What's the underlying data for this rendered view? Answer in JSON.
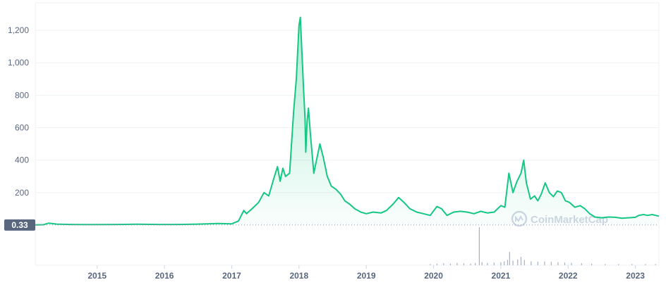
{
  "colors": {
    "line": "#16c784",
    "grid": "#eff2f5",
    "axis_text": "#58667e",
    "badge_bg": "#58667e",
    "badge_text": "#ffffff",
    "volume": "#a6b0c3",
    "watermark": "#cfd6e4"
  },
  "watermark": {
    "text": "CoinMarketCap",
    "icon": "coinmarketcap-logo-icon"
  },
  "current_price_badge": "0.33",
  "chart_data": {
    "type": "area",
    "title": "",
    "xlabel": "",
    "ylabel": "",
    "ylim": [
      0,
      1300
    ],
    "xlim": [
      2014.08,
      2023.35
    ],
    "grid": true,
    "y_ticks": [
      {
        "value": 200,
        "label": "200"
      },
      {
        "value": 400,
        "label": "400"
      },
      {
        "value": 600,
        "label": "600"
      },
      {
        "value": 800,
        "label": "800"
      },
      {
        "value": 1000,
        "label": "1,000"
      },
      {
        "value": 1200,
        "label": "1,200"
      }
    ],
    "x_ticks": [
      {
        "value": 2015,
        "label": "2015"
      },
      {
        "value": 2016,
        "label": "2016"
      },
      {
        "value": 2017,
        "label": "2017"
      },
      {
        "value": 2018,
        "label": "2018"
      },
      {
        "value": 2019,
        "label": "2019"
      },
      {
        "value": 2020,
        "label": "2020"
      },
      {
        "value": 2021,
        "label": "2021"
      },
      {
        "value": 2022,
        "label": "2022"
      },
      {
        "value": 2023,
        "label": "2023"
      }
    ],
    "series": [
      {
        "values": [
          [
            2014.08,
            1
          ],
          [
            2014.2,
            2
          ],
          [
            2014.28,
            12
          ],
          [
            2014.4,
            6
          ],
          [
            2014.6,
            4
          ],
          [
            2014.8,
            3
          ],
          [
            2015.0,
            3
          ],
          [
            2015.3,
            4
          ],
          [
            2015.6,
            5
          ],
          [
            2015.9,
            4
          ],
          [
            2016.2,
            4
          ],
          [
            2016.5,
            6
          ],
          [
            2016.8,
            10
          ],
          [
            2017.0,
            8
          ],
          [
            2017.1,
            25
          ],
          [
            2017.18,
            90
          ],
          [
            2017.22,
            70
          ],
          [
            2017.3,
            100
          ],
          [
            2017.4,
            140
          ],
          [
            2017.48,
            200
          ],
          [
            2017.55,
            180
          ],
          [
            2017.62,
            280
          ],
          [
            2017.68,
            360
          ],
          [
            2017.72,
            270
          ],
          [
            2017.76,
            350
          ],
          [
            2017.8,
            300
          ],
          [
            2017.86,
            320
          ],
          [
            2017.92,
            700
          ],
          [
            2017.96,
            900
          ],
          [
            2018.0,
            1230
          ],
          [
            2018.02,
            1280
          ],
          [
            2018.05,
            1000
          ],
          [
            2018.07,
            820
          ],
          [
            2018.09,
            650
          ],
          [
            2018.1,
            450
          ],
          [
            2018.12,
            640
          ],
          [
            2018.14,
            720
          ],
          [
            2018.17,
            560
          ],
          [
            2018.22,
            320
          ],
          [
            2018.27,
            420
          ],
          [
            2018.31,
            500
          ],
          [
            2018.36,
            420
          ],
          [
            2018.42,
            300
          ],
          [
            2018.48,
            240
          ],
          [
            2018.55,
            220
          ],
          [
            2018.62,
            190
          ],
          [
            2018.68,
            150
          ],
          [
            2018.75,
            130
          ],
          [
            2018.83,
            100
          ],
          [
            2018.92,
            80
          ],
          [
            2019.0,
            70
          ],
          [
            2019.1,
            80
          ],
          [
            2019.22,
            75
          ],
          [
            2019.3,
            90
          ],
          [
            2019.4,
            130
          ],
          [
            2019.48,
            170
          ],
          [
            2019.56,
            140
          ],
          [
            2019.65,
            100
          ],
          [
            2019.75,
            80
          ],
          [
            2019.85,
            70
          ],
          [
            2019.95,
            60
          ],
          [
            2020.05,
            115
          ],
          [
            2020.12,
            100
          ],
          [
            2020.2,
            60
          ],
          [
            2020.3,
            80
          ],
          [
            2020.4,
            85
          ],
          [
            2020.5,
            80
          ],
          [
            2020.6,
            70
          ],
          [
            2020.7,
            85
          ],
          [
            2020.8,
            75
          ],
          [
            2020.9,
            80
          ],
          [
            2021.0,
            120
          ],
          [
            2021.06,
            110
          ],
          [
            2021.12,
            320
          ],
          [
            2021.18,
            200
          ],
          [
            2021.24,
            270
          ],
          [
            2021.3,
            320
          ],
          [
            2021.34,
            400
          ],
          [
            2021.38,
            260
          ],
          [
            2021.44,
            160
          ],
          [
            2021.5,
            180
          ],
          [
            2021.55,
            150
          ],
          [
            2021.6,
            190
          ],
          [
            2021.66,
            260
          ],
          [
            2021.72,
            200
          ],
          [
            2021.78,
            175
          ],
          [
            2021.84,
            210
          ],
          [
            2021.9,
            200
          ],
          [
            2021.96,
            150
          ],
          [
            2022.02,
            140
          ],
          [
            2022.1,
            110
          ],
          [
            2022.18,
            120
          ],
          [
            2022.25,
            100
          ],
          [
            2022.32,
            70
          ],
          [
            2022.4,
            50
          ],
          [
            2022.5,
            45
          ],
          [
            2022.6,
            50
          ],
          [
            2022.7,
            48
          ],
          [
            2022.8,
            42
          ],
          [
            2022.9,
            45
          ],
          [
            2023.0,
            48
          ],
          [
            2023.05,
            60
          ],
          [
            2023.12,
            65
          ],
          [
            2023.18,
            60
          ],
          [
            2023.25,
            65
          ],
          [
            2023.3,
            60
          ],
          [
            2023.35,
            55
          ]
        ]
      }
    ],
    "volume": {
      "ylim": [
        0,
        100
      ],
      "values": [
        [
          2019.95,
          3
        ],
        [
          2020.05,
          4
        ],
        [
          2020.15,
          5
        ],
        [
          2020.25,
          4
        ],
        [
          2020.35,
          6
        ],
        [
          2020.45,
          5
        ],
        [
          2020.55,
          4
        ],
        [
          2020.62,
          6
        ],
        [
          2020.68,
          100
        ],
        [
          2020.72,
          8
        ],
        [
          2020.8,
          6
        ],
        [
          2020.9,
          7
        ],
        [
          2021.0,
          8
        ],
        [
          2021.05,
          10
        ],
        [
          2021.1,
          14
        ],
        [
          2021.13,
          35
        ],
        [
          2021.18,
          12
        ],
        [
          2021.25,
          15
        ],
        [
          2021.3,
          22
        ],
        [
          2021.35,
          14
        ],
        [
          2021.45,
          10
        ],
        [
          2021.55,
          9
        ],
        [
          2021.65,
          10
        ],
        [
          2021.75,
          9
        ],
        [
          2021.85,
          8
        ],
        [
          2021.95,
          7
        ],
        [
          2022.05,
          6
        ],
        [
          2022.2,
          5
        ],
        [
          2022.35,
          4
        ],
        [
          2022.55,
          3
        ],
        [
          2022.75,
          3
        ],
        [
          2022.95,
          3
        ],
        [
          2023.15,
          3
        ],
        [
          2023.3,
          3
        ]
      ]
    }
  }
}
